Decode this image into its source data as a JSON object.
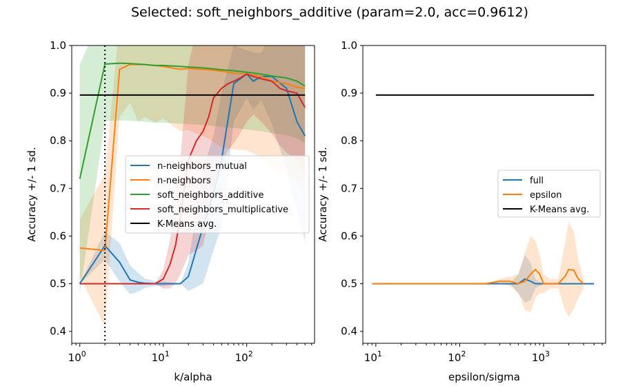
{
  "figure": {
    "title": "Selected: soft_neighbors_additive (param=2.0, acc=0.9612)"
  },
  "chart_data": [
    {
      "type": "line",
      "xlabel": "k/alpha",
      "ylabel": "Accuracy +/- 1 sd.",
      "x_scale": "log",
      "xlim": [
        0.8,
        650
      ],
      "ylim": [
        0.375,
        1.0
      ],
      "x_ticks": [
        {
          "v": 1,
          "l": "10",
          "e": "0"
        },
        {
          "v": 10,
          "l": "10",
          "e": "1"
        },
        {
          "v": 100,
          "l": "10",
          "e": "2"
        }
      ],
      "y_ticks": [
        "0.4",
        "0.5",
        "0.6",
        "0.7",
        "0.8",
        "0.9",
        "1.0"
      ],
      "legend_position": "center-right",
      "selected_param_line": 2.0,
      "series": [
        {
          "name": "n-neighbors_mutual",
          "color": "#1f77b4",
          "x": [
            1,
            2,
            3,
            4,
            5,
            6,
            8,
            10,
            16,
            20,
            30,
            40,
            50,
            70,
            100,
            120,
            150,
            200,
            300,
            400,
            500
          ],
          "y": [
            0.5,
            0.58,
            0.545,
            0.508,
            0.503,
            0.501,
            0.5,
            0.5,
            0.5,
            0.515,
            0.62,
            0.69,
            0.76,
            0.92,
            0.94,
            0.925,
            0.935,
            0.935,
            0.91,
            0.84,
            0.81
          ],
          "sd": [
            0.0,
            0.03,
            0.04,
            0.03,
            0.02,
            0.01,
            0.005,
            0.005,
            0.0,
            0.03,
            0.12,
            0.12,
            0.14,
            0.08,
            0.05,
            0.06,
            0.05,
            0.1,
            0.17,
            0.19,
            0.22
          ]
        },
        {
          "name": "n-neighbors",
          "color": "#ff7f0e",
          "x": [
            1,
            2,
            3,
            4,
            5,
            6,
            8,
            10,
            16,
            20,
            30,
            40,
            50,
            70,
            100,
            150,
            200,
            300,
            400,
            500
          ],
          "y": [
            0.575,
            0.57,
            0.95,
            0.96,
            0.96,
            0.96,
            0.958,
            0.956,
            0.95,
            0.952,
            0.95,
            0.948,
            0.946,
            0.942,
            0.94,
            0.935,
            0.925,
            0.92,
            0.912,
            0.91
          ],
          "sd": [
            0.06,
            0.16,
            0.1,
            0.08,
            0.12,
            0.11,
            0.12,
            0.11,
            0.13,
            0.13,
            0.14,
            0.15,
            0.16,
            0.16,
            0.16,
            0.17,
            0.18,
            0.19,
            0.2,
            0.2
          ]
        },
        {
          "name": "soft_neighbors_additive",
          "color": "#2ca02c",
          "x": [
            1,
            2,
            3,
            4,
            5,
            6,
            8,
            10,
            16,
            20,
            30,
            40,
            50,
            70,
            100,
            150,
            200,
            300,
            400,
            500
          ],
          "y": [
            0.72,
            0.961,
            0.963,
            0.962,
            0.961,
            0.96,
            0.958,
            0.958,
            0.956,
            0.955,
            0.953,
            0.951,
            0.949,
            0.947,
            0.944,
            0.94,
            0.936,
            0.932,
            0.925,
            0.915
          ],
          "sd": [
            0.24,
            0.12,
            0.12,
            0.12,
            0.12,
            0.12,
            0.12,
            0.12,
            0.12,
            0.12,
            0.12,
            0.12,
            0.12,
            0.12,
            0.12,
            0.12,
            0.12,
            0.12,
            0.12,
            0.12
          ]
        },
        {
          "name": "soft_neighbors_multiplicative",
          "color": "#d62728",
          "x": [
            1,
            2,
            3,
            4,
            5,
            6,
            8,
            10,
            12,
            14,
            16,
            20,
            25,
            30,
            35,
            40,
            50,
            60,
            70,
            80,
            100,
            120,
            150,
            200,
            250,
            300,
            400,
            500
          ],
          "y": [
            0.5,
            0.5,
            0.5,
            0.5,
            0.5,
            0.5,
            0.5,
            0.51,
            0.54,
            0.58,
            0.64,
            0.76,
            0.8,
            0.82,
            0.85,
            0.89,
            0.91,
            0.92,
            0.925,
            0.93,
            0.94,
            0.935,
            0.93,
            0.925,
            0.91,
            0.905,
            0.9,
            0.87
          ],
          "sd": [
            0.0,
            0.0,
            0.0,
            0.0,
            0.0,
            0.0,
            0.0,
            0.02,
            0.05,
            0.08,
            0.12,
            0.2,
            0.23,
            0.24,
            0.22,
            0.2,
            0.16,
            0.14,
            0.13,
            0.12,
            0.1,
            0.08,
            0.09,
            0.11,
            0.12,
            0.13,
            0.14,
            0.15
          ]
        },
        {
          "name": "K-Means avg.",
          "color": "#000000",
          "x": [
            1,
            500
          ],
          "y": [
            0.896,
            0.896
          ],
          "sd": null
        }
      ]
    },
    {
      "type": "line",
      "xlabel": "epsilon/sigma",
      "ylabel": "Accuracy +/- 1 sd.",
      "x_scale": "log",
      "xlim": [
        7,
        5500
      ],
      "ylim": [
        0.375,
        1.0
      ],
      "x_ticks": [
        {
          "v": 10,
          "l": "10",
          "e": "1"
        },
        {
          "v": 100,
          "l": "10",
          "e": "2"
        },
        {
          "v": 1000,
          "l": "10",
          "e": "3"
        }
      ],
      "y_ticks": [
        "0.4",
        "0.5",
        "0.6",
        "0.7",
        "0.8",
        "0.9",
        "1.0"
      ],
      "legend_position": "center-right",
      "series": [
        {
          "name": "full",
          "color": "#1f77b4",
          "x": [
            10,
            30,
            100,
            200,
            300,
            400,
            500,
            600,
            700,
            800,
            1000,
            1500,
            2000,
            3000,
            4000
          ],
          "y": [
            0.5,
            0.5,
            0.5,
            0.5,
            0.5,
            0.5,
            0.5,
            0.51,
            0.505,
            0.5,
            0.5,
            0.5,
            0.5,
            0.5,
            0.5
          ],
          "sd": [
            0,
            0,
            0,
            0,
            0,
            0,
            0.02,
            0.05,
            0.04,
            0.01,
            0,
            0,
            0,
            0,
            0
          ]
        },
        {
          "name": "epsilon",
          "color": "#ff7f0e",
          "x": [
            9,
            30,
            100,
            200,
            300,
            400,
            500,
            600,
            700,
            800,
            900,
            1000,
            1200,
            1500,
            1800,
            2000,
            2300,
            2600,
            3000
          ],
          "y": [
            0.5,
            0.5,
            0.5,
            0.5,
            0.505,
            0.505,
            0.5,
            0.505,
            0.52,
            0.53,
            0.52,
            0.5,
            0.5,
            0.5,
            0.515,
            0.53,
            0.528,
            0.51,
            0.5
          ],
          "sd": [
            0,
            0,
            0,
            0,
            0.005,
            0.01,
            0.02,
            0.06,
            0.08,
            0.06,
            0.04,
            0.02,
            0.01,
            0.01,
            0.07,
            0.1,
            0.08,
            0.04,
            0.01
          ]
        },
        {
          "name": "K-Means avg.",
          "color": "#000000",
          "x": [
            10,
            4000
          ],
          "y": [
            0.896,
            0.896
          ],
          "sd": null
        }
      ]
    }
  ]
}
